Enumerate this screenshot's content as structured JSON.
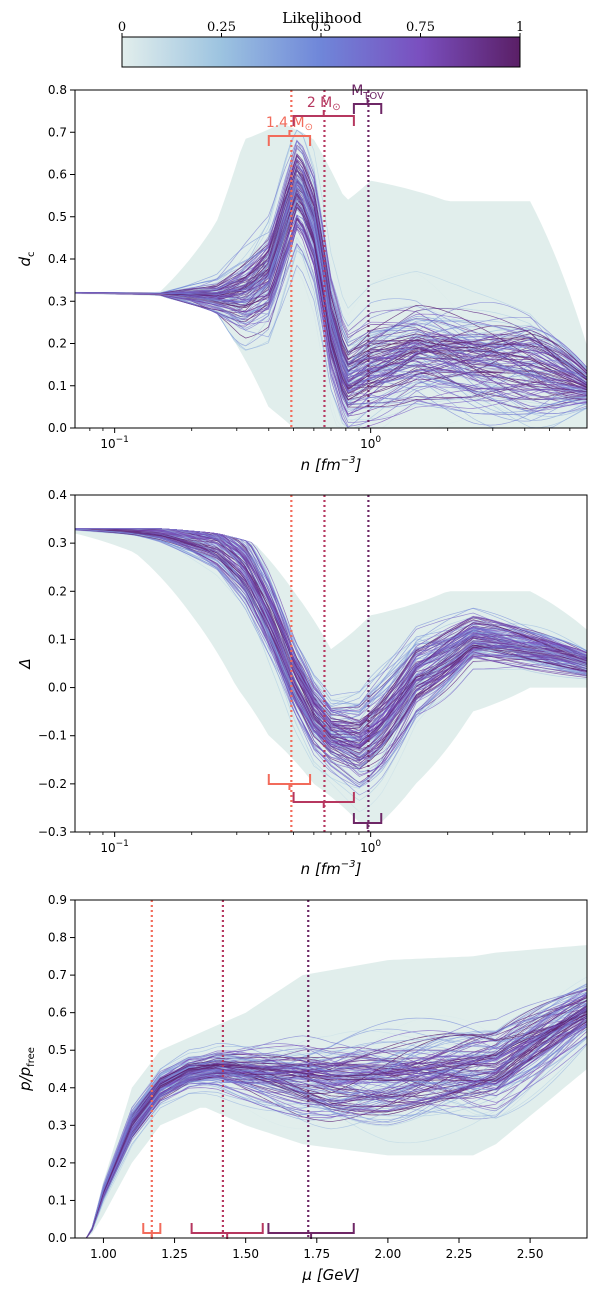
{
  "colorbar": {
    "title": "Likelihood",
    "ticks": [
      "0",
      "0.25",
      "0.5",
      "0.75",
      "1"
    ],
    "colormap": [
      "#e2eeec",
      "#9cc3e0",
      "#6f86d9",
      "#7a4fbf",
      "#5a1f66"
    ]
  },
  "markers": {
    "m14": {
      "label": "1.4 M",
      "sub": "⊙",
      "color": "#f26b5b"
    },
    "m2": {
      "label": "2 M",
      "sub": "⊙",
      "color": "#b6375f"
    },
    "mtov": {
      "label": "M",
      "sub": "TOV",
      "color": "#6e2766"
    }
  },
  "chart_data": [
    {
      "type": "line",
      "ylabel": "d",
      "ylabel_sub": "c",
      "xlabel": "n [fm",
      "xlabel_sup": "−3",
      "xscale": "log",
      "xlim": [
        0.07,
        7
      ],
      "ylim": [
        0,
        0.82
      ],
      "yticks": [
        "0.0",
        "0.1",
        "0.2",
        "0.3",
        "0.4",
        "0.5",
        "0.6",
        "0.7",
        "0.8"
      ],
      "xticks": [
        {
          "base": "10",
          "exp": "−1",
          "value": 0.1
        },
        {
          "base": "10",
          "exp": "0",
          "value": 1
        }
      ],
      "markers_x": {
        "m14": 0.49,
        "m2": 0.66,
        "mtov": 0.98
      },
      "marker_ranges": {
        "m14": [
          0.4,
          0.58
        ],
        "m2": [
          0.5,
          0.86
        ],
        "mtov": [
          0.86,
          1.1
        ]
      },
      "median_curve": {
        "x": [
          0.07,
          0.15,
          0.25,
          0.32,
          0.4,
          0.46,
          0.52,
          0.6,
          0.7,
          0.8,
          1.0,
          1.5,
          2.5,
          4.2,
          7
        ],
        "y": [
          0.328,
          0.325,
          0.318,
          0.33,
          0.38,
          0.5,
          0.6,
          0.5,
          0.25,
          0.12,
          0.15,
          0.18,
          0.16,
          0.15,
          0.1
        ]
      },
      "band_upper": {
        "x": [
          0.07,
          0.15,
          0.25,
          0.32,
          0.45,
          0.6,
          0.8,
          1.0,
          2.0,
          4.2,
          7
        ],
        "y": [
          0.33,
          0.33,
          0.5,
          0.7,
          0.74,
          0.7,
          0.55,
          0.6,
          0.55,
          0.55,
          0.2
        ]
      },
      "band_lower": {
        "x": [
          0.07,
          0.15,
          0.25,
          0.3,
          0.4,
          0.5,
          0.7,
          1.0,
          2.0,
          4.2,
          7
        ],
        "y": [
          0.325,
          0.32,
          0.28,
          0.2,
          0.05,
          0.0,
          0.0,
          0.0,
          0.0,
          0.0,
          0.0
        ]
      }
    },
    {
      "type": "line",
      "ylabel": "Δ",
      "xlabel": "n [fm",
      "xlabel_sup": "−3",
      "xscale": "log",
      "xlim": [
        0.07,
        7
      ],
      "ylim": [
        -0.3,
        0.4
      ],
      "yticks": [
        "−0.3",
        "−0.2",
        "−0.1",
        "0.0",
        "0.1",
        "0.2",
        "0.3",
        "0.4"
      ],
      "xticks": [
        {
          "base": "10",
          "exp": "−1",
          "value": 0.1
        },
        {
          "base": "10",
          "exp": "0",
          "value": 1
        }
      ],
      "markers_x": {
        "m14": 0.49,
        "m2": 0.66,
        "mtov": 0.98
      },
      "marker_ranges": {
        "m14": [
          0.4,
          0.58
        ],
        "m2": [
          0.5,
          0.86
        ],
        "mtov": [
          0.86,
          1.1
        ]
      },
      "median_curve": {
        "x": [
          0.07,
          0.15,
          0.25,
          0.32,
          0.4,
          0.5,
          0.6,
          0.7,
          0.9,
          1.1,
          1.5,
          2.5,
          4.2,
          7
        ],
        "y": [
          0.33,
          0.325,
          0.3,
          0.25,
          0.15,
          0.02,
          -0.06,
          -0.1,
          -0.12,
          -0.08,
          0.02,
          0.1,
          0.08,
          0.05
        ]
      },
      "band_upper": {
        "x": [
          0.07,
          0.15,
          0.25,
          0.35,
          0.5,
          0.7,
          1.0,
          2.0,
          4.2,
          7
        ],
        "y": [
          0.33,
          0.33,
          0.32,
          0.3,
          0.2,
          0.08,
          0.15,
          0.2,
          0.2,
          0.12
        ]
      },
      "band_lower": {
        "x": [
          0.07,
          0.12,
          0.2,
          0.3,
          0.4,
          0.6,
          0.9,
          1.1,
          1.5,
          2.5,
          4.2,
          7
        ],
        "y": [
          0.32,
          0.28,
          0.15,
          0.0,
          -0.1,
          -0.2,
          -0.28,
          -0.28,
          -0.2,
          -0.05,
          0.0,
          0.0
        ]
      }
    },
    {
      "type": "line",
      "ylabel": "p/p",
      "ylabel_sub": "free",
      "xlabel": "μ [GeV]",
      "xscale": "linear",
      "xlim": [
        0.9,
        2.7
      ],
      "ylim": [
        0,
        0.9
      ],
      "yticks": [
        "0.0",
        "0.1",
        "0.2",
        "0.3",
        "0.4",
        "0.5",
        "0.6",
        "0.7",
        "0.8",
        "0.9"
      ],
      "xticks": [
        {
          "label": "1.00",
          "value": 1.0
        },
        {
          "label": "1.25",
          "value": 1.25
        },
        {
          "label": "1.50",
          "value": 1.5
        },
        {
          "label": "1.75",
          "value": 1.75
        },
        {
          "label": "2.00",
          "value": 2.0
        },
        {
          "label": "2.25",
          "value": 2.25
        },
        {
          "label": "2.50",
          "value": 2.5
        }
      ],
      "markers_x": {
        "m14": 1.17,
        "m2": 1.42,
        "mtov": 1.72
      },
      "marker_ranges": {
        "m14": [
          1.14,
          1.2
        ],
        "m2": [
          1.31,
          1.56
        ],
        "mtov": [
          1.58,
          1.88
        ]
      },
      "median_curve": {
        "x": [
          0.95,
          1.0,
          1.1,
          1.2,
          1.3,
          1.4,
          1.6,
          1.8,
          2.0,
          2.2,
          2.38,
          2.7
        ],
        "y": [
          0.0,
          0.12,
          0.3,
          0.4,
          0.44,
          0.45,
          0.43,
          0.41,
          0.42,
          0.44,
          0.45,
          0.6
        ]
      },
      "band_upper": {
        "x": [
          0.95,
          1.0,
          1.1,
          1.2,
          1.35,
          1.5,
          1.7,
          2.0,
          2.3,
          2.38,
          2.7
        ],
        "y": [
          0.0,
          0.15,
          0.4,
          0.5,
          0.55,
          0.6,
          0.7,
          0.74,
          0.75,
          0.76,
          0.78
        ]
      },
      "band_lower": {
        "x": [
          0.95,
          1.0,
          1.1,
          1.2,
          1.35,
          1.5,
          1.7,
          2.0,
          2.3,
          2.38,
          2.7
        ],
        "y": [
          0.0,
          0.06,
          0.2,
          0.3,
          0.35,
          0.3,
          0.25,
          0.22,
          0.22,
          0.25,
          0.45
        ]
      }
    }
  ]
}
